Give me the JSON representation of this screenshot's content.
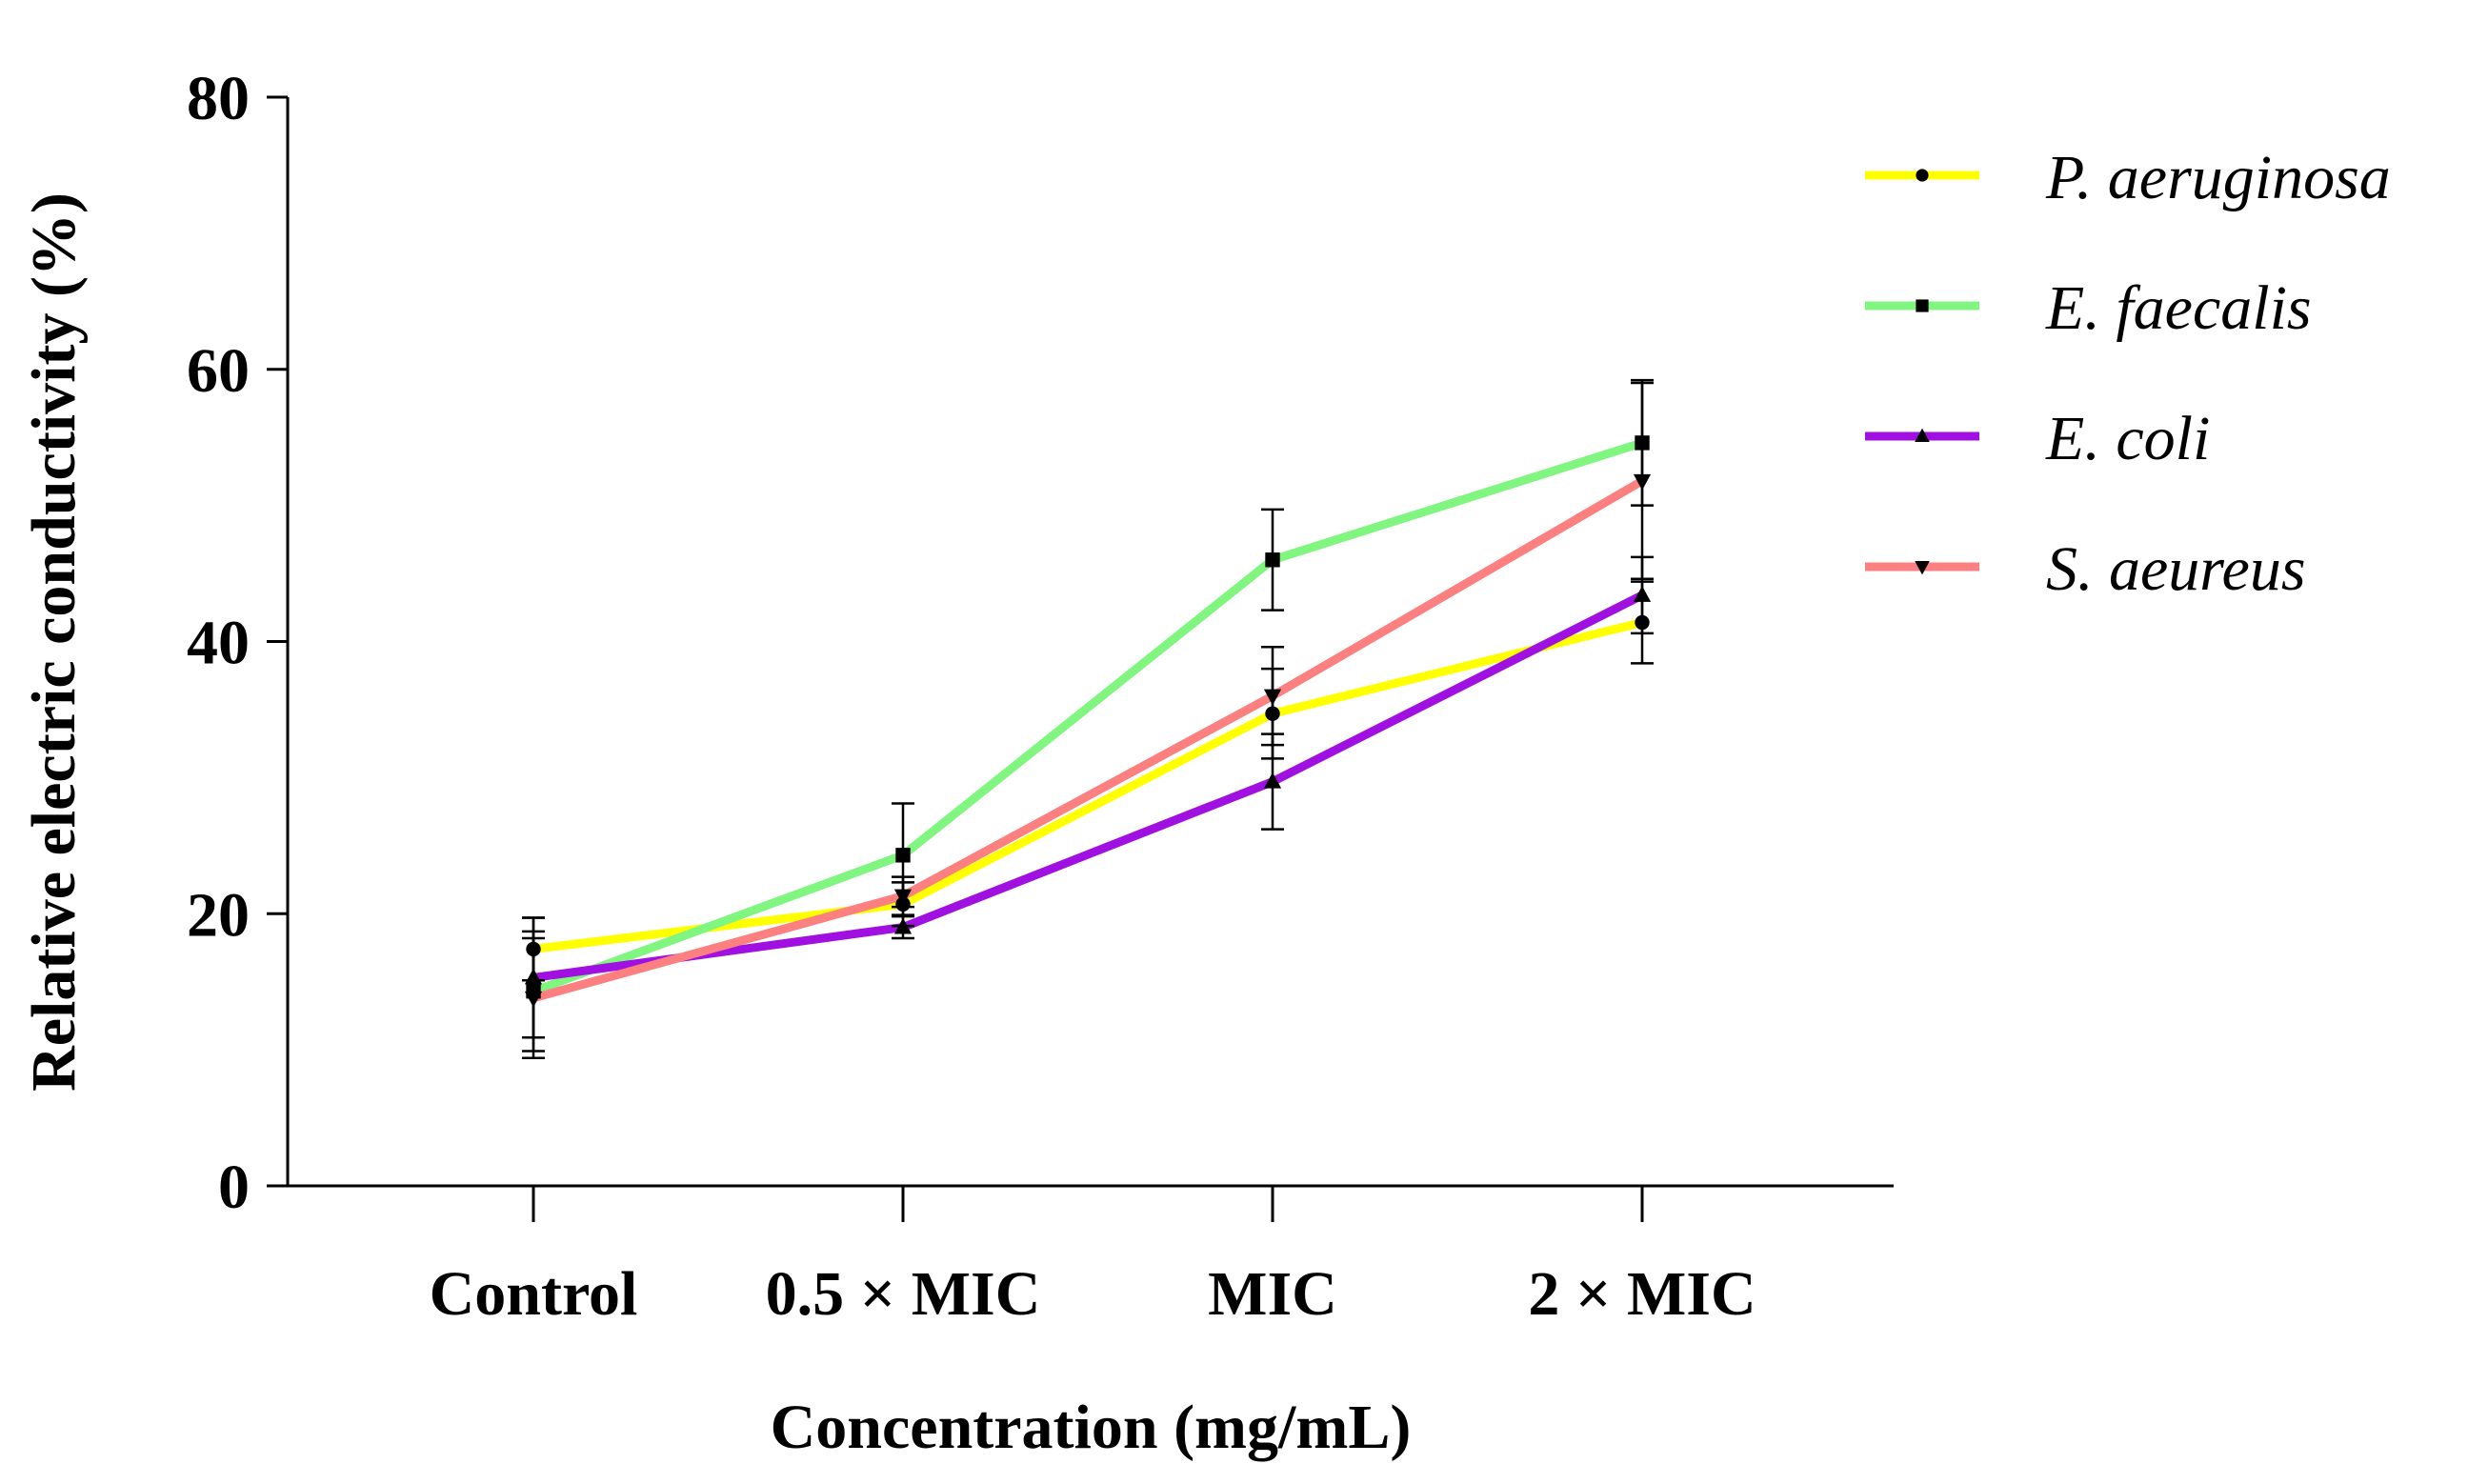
{
  "chart_data": {
    "type": "line",
    "xlabel": "Concentration (mg/mL)",
    "ylabel": "Relative electric conductivity (%)",
    "categories": [
      "Control",
      "0.5 × MIC",
      "MIC",
      "2 × MIC"
    ],
    "ylim": [
      0,
      80
    ],
    "yticks": [
      0,
      20,
      40,
      60,
      80
    ],
    "legend_position": "top-right",
    "grid": false,
    "series": [
      {
        "name": "P. aeruginosa",
        "color": "#ffff00",
        "marker": "circle",
        "values": [
          17.4,
          20.7,
          34.7,
          41.4
        ],
        "errors": [
          2.3,
          1.6,
          3.3,
          3.0
        ]
      },
      {
        "name": "E. faecalis",
        "color": "#80f680",
        "marker": "square",
        "values": [
          14.3,
          24.3,
          46.0,
          54.6
        ],
        "errors": [
          4.4,
          3.8,
          3.7,
          4.6
        ]
      },
      {
        "name": "E. coli",
        "color": "#a010e0",
        "marker": "triangle-up",
        "values": [
          15.3,
          19.0,
          29.7,
          43.4
        ],
        "errors": [
          4.4,
          0.8,
          3.5,
          2.8
        ]
      },
      {
        "name": "S. aeureus",
        "color": "#fc8080",
        "marker": "triangle-down",
        "values": [
          13.8,
          21.3,
          36.0,
          51.8
        ],
        "errors": [
          4.4,
          1.4,
          3.6,
          7.2
        ]
      }
    ]
  }
}
